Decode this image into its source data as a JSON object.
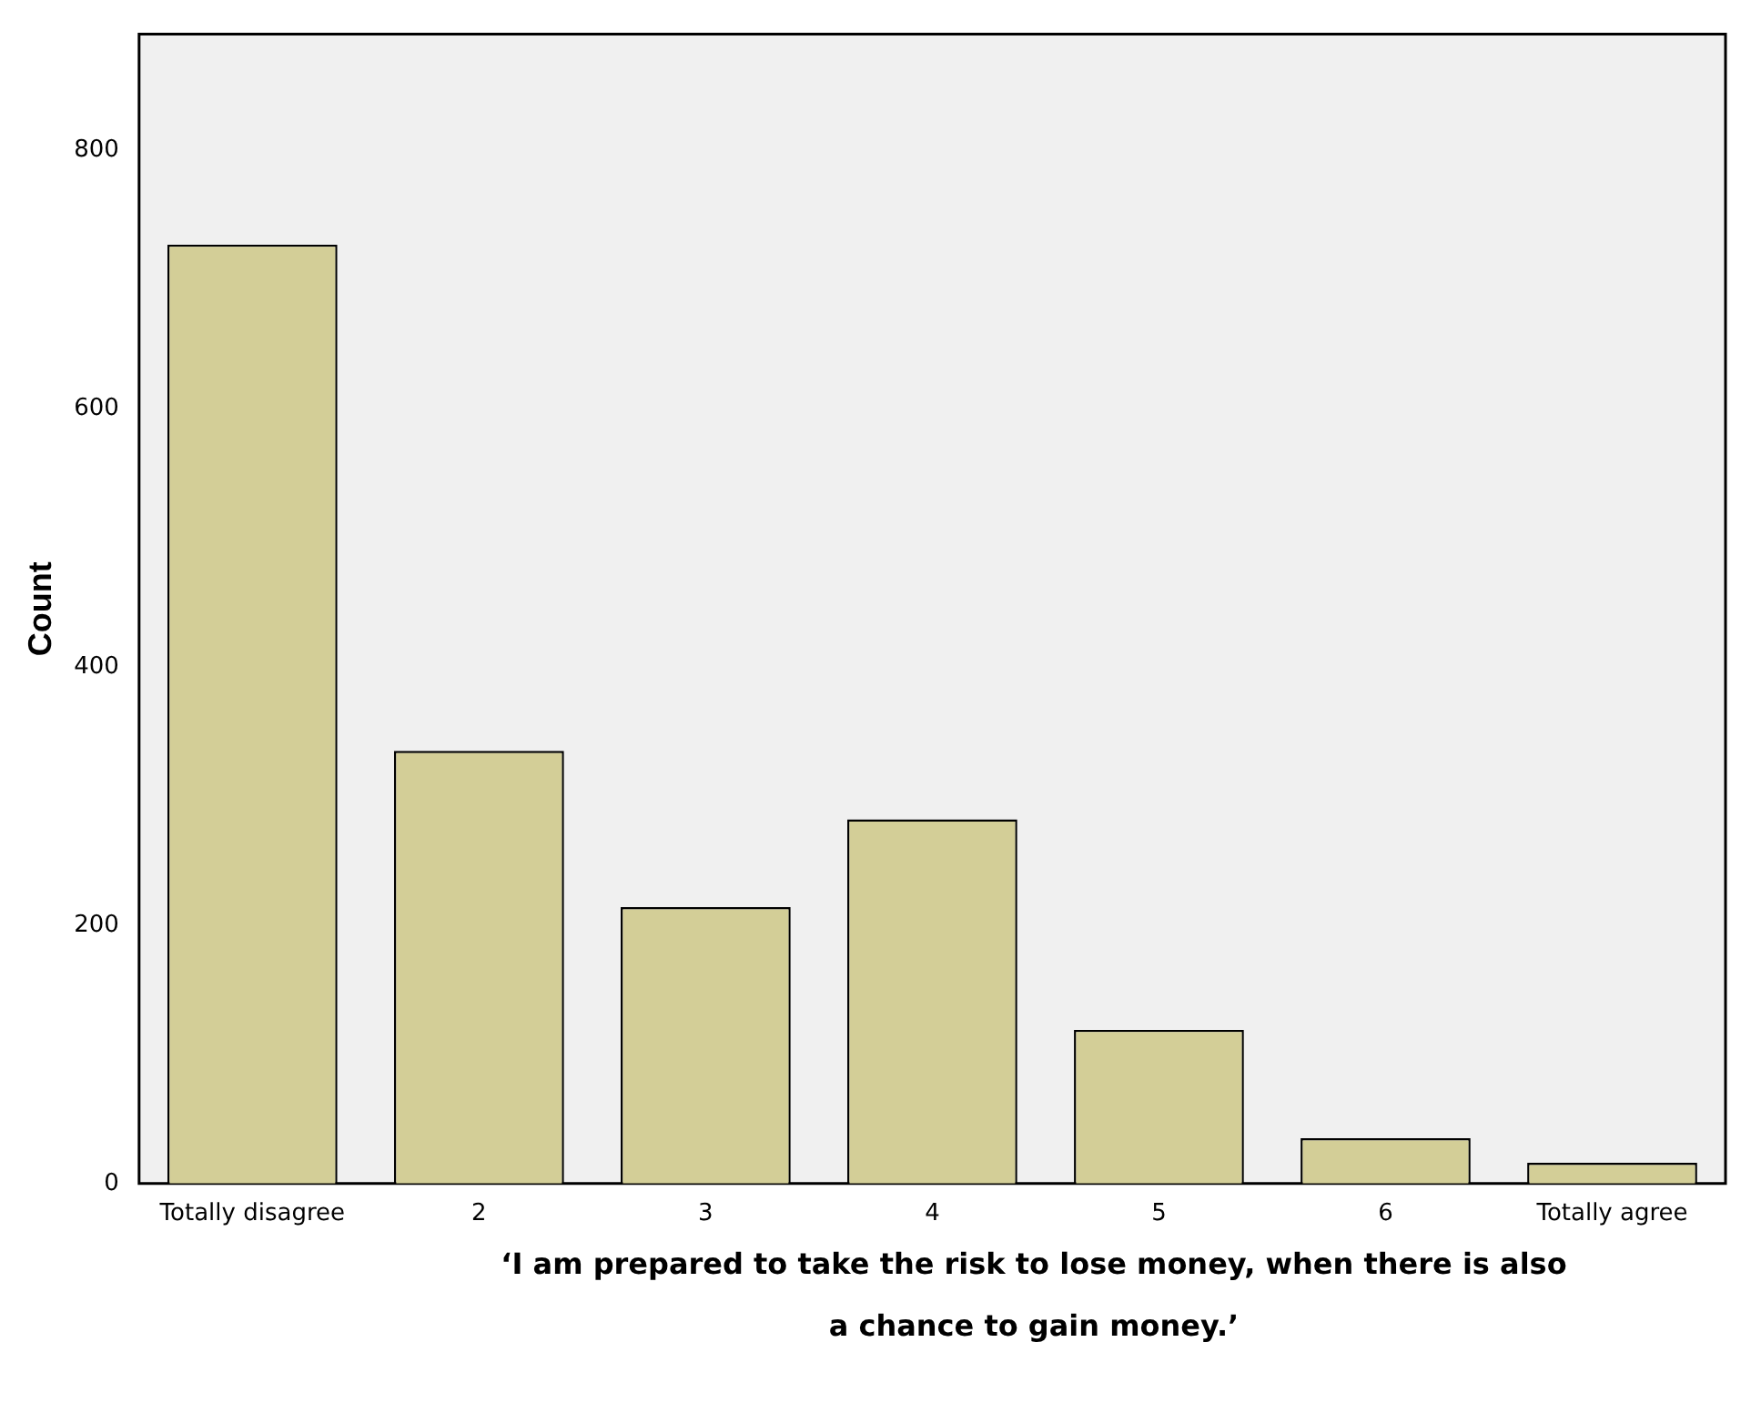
{
  "chart_data": {
    "type": "bar",
    "xlabel": "‘I am prepared to take the risk to lose money, when there is also a chance to gain money.’",
    "ylabel": "Count",
    "categories": [
      "Totally disagree",
      "2",
      "3",
      "4",
      "5",
      "6",
      "Totally agree"
    ],
    "values": [
      727,
      335,
      214,
      282,
      119,
      35,
      16
    ],
    "color": "#d3ce97",
    "ylim": [
      0,
      890
    ],
    "yticks": [
      0,
      200,
      400,
      600,
      800
    ],
    "grid": false,
    "legend": false
  }
}
